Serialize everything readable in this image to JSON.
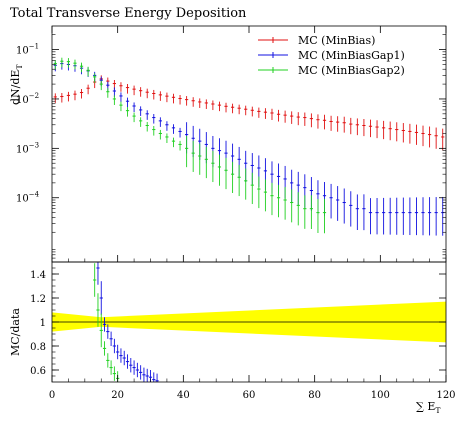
{
  "chart_data": [
    {
      "type": "scatter",
      "title": "Total Transverse Energy Deposition",
      "ylabel": "dN/dE_T",
      "ylabel_parts": {
        "base": "dN/dE",
        "sub": "T"
      },
      "yscale": "log",
      "xlim": [
        0,
        120
      ],
      "ylim": [
        5e-06,
        0.3
      ],
      "yticks": [
        0.1,
        0.01,
        0.001,
        0.0001
      ],
      "ytick_labels": [
        {
          "base": "10",
          "exp": "−1"
        },
        {
          "base": "10",
          "exp": "−2"
        },
        {
          "base": "10",
          "exp": "−3"
        },
        {
          "base": "10",
          "exp": "−4"
        }
      ],
      "legend_position": "top-right",
      "series": [
        {
          "name": "MC (MinBias)",
          "color": "#e01010",
          "points": [
            [
              1,
              0.011
            ],
            [
              3,
              0.0112
            ],
            [
              5,
              0.0118
            ],
            [
              7,
              0.0125
            ],
            [
              9,
              0.0135
            ],
            [
              11,
              0.0165
            ],
            [
              13,
              0.022
            ],
            [
              15,
              0.0255
            ],
            [
              17,
              0.023
            ],
            [
              19,
              0.0205
            ],
            [
              21,
              0.0185
            ],
            [
              23,
              0.017
            ],
            [
              25,
              0.0158
            ],
            [
              27,
              0.0147
            ],
            [
              29,
              0.0137
            ],
            [
              31,
              0.0129
            ],
            [
              33,
              0.0121
            ],
            [
              35,
              0.0114
            ],
            [
              37,
              0.0108
            ],
            [
              39,
              0.0102
            ],
            [
              41,
              0.0097
            ],
            [
              43,
              0.0092
            ],
            [
              45,
              0.0087
            ],
            [
              47,
              0.0083
            ],
            [
              49,
              0.0079
            ],
            [
              51,
              0.0075
            ],
            [
              53,
              0.0071
            ],
            [
              55,
              0.0068
            ],
            [
              57,
              0.0065
            ],
            [
              59,
              0.0062
            ],
            [
              61,
              0.0059
            ],
            [
              63,
              0.0056
            ],
            [
              65,
              0.0054
            ],
            [
              67,
              0.0052
            ],
            [
              69,
              0.0049
            ],
            [
              71,
              0.0047
            ],
            [
              73,
              0.0045
            ],
            [
              75,
              0.0043
            ],
            [
              77,
              0.0042
            ],
            [
              79,
              0.004
            ],
            [
              81,
              0.0038
            ],
            [
              83,
              0.0037
            ],
            [
              85,
              0.0035
            ],
            [
              87,
              0.0034
            ],
            [
              89,
              0.0033
            ],
            [
              91,
              0.0031
            ],
            [
              93,
              0.003
            ],
            [
              95,
              0.0029
            ],
            [
              97,
              0.0028
            ],
            [
              99,
              0.0027
            ],
            [
              101,
              0.0026
            ],
            [
              103,
              0.0025
            ],
            [
              105,
              0.0024
            ],
            [
              107,
              0.0023
            ],
            [
              109,
              0.0022
            ],
            [
              111,
              0.0021
            ],
            [
              113,
              0.002
            ],
            [
              115,
              0.0019
            ],
            [
              117,
              0.0018
            ],
            [
              119,
              0.0017
            ]
          ]
        },
        {
          "name": "MC (MinBiasGap1)",
          "color": "#1010e0",
          "points": [
            [
              1,
              0.048
            ],
            [
              3,
              0.052
            ],
            [
              5,
              0.05
            ],
            [
              7,
              0.047
            ],
            [
              9,
              0.042
            ],
            [
              11,
              0.037
            ],
            [
              13,
              0.03
            ],
            [
              15,
              0.024
            ],
            [
              17,
              0.019
            ],
            [
              19,
              0.0145
            ],
            [
              21,
              0.0115
            ],
            [
              23,
              0.009
            ],
            [
              25,
              0.0072
            ],
            [
              27,
              0.006
            ],
            [
              29,
              0.005
            ],
            [
              31,
              0.0042
            ],
            [
              33,
              0.0036
            ],
            [
              35,
              0.003
            ],
            [
              37,
              0.0026
            ],
            [
              39,
              0.0022
            ],
            [
              41,
              0.0019
            ],
            [
              43,
              0.0016
            ],
            [
              45,
              0.0014
            ],
            [
              47,
              0.0012
            ],
            [
              49,
              0.001
            ],
            [
              51,
              0.0009
            ],
            [
              53,
              0.0008
            ],
            [
              55,
              0.0007
            ],
            [
              57,
              0.0006
            ],
            [
              59,
              0.0005
            ],
            [
              61,
              0.00045
            ],
            [
              63,
              0.0004
            ],
            [
              65,
              0.00035
            ],
            [
              67,
              0.0003
            ],
            [
              69,
              0.00027
            ],
            [
              71,
              0.00024
            ],
            [
              73,
              0.0002
            ],
            [
              75,
              0.00018
            ],
            [
              77,
              0.00016
            ],
            [
              79,
              0.00014
            ],
            [
              81,
              0.00012
            ],
            [
              83,
              0.00011
            ],
            [
              85,
              0.0001
            ],
            [
              87,
              9e-05
            ],
            [
              89,
              8e-05
            ],
            [
              91,
              7e-05
            ],
            [
              93,
              6e-05
            ],
            [
              95,
              6e-05
            ],
            [
              97,
              5e-05
            ],
            [
              99,
              5e-05
            ],
            [
              101,
              5e-05
            ],
            [
              103,
              5e-05
            ],
            [
              105,
              5e-05
            ],
            [
              107,
              5e-05
            ],
            [
              109,
              5e-05
            ],
            [
              111,
              5e-05
            ],
            [
              113,
              5e-05
            ],
            [
              115,
              5e-05
            ],
            [
              117,
              5e-05
            ],
            [
              119,
              5e-05
            ]
          ]
        },
        {
          "name": "MC (MinBiasGap2)",
          "color": "#20d020",
          "points": [
            [
              1,
              0.052
            ],
            [
              3,
              0.058
            ],
            [
              5,
              0.057
            ],
            [
              7,
              0.053
            ],
            [
              9,
              0.046
            ],
            [
              11,
              0.038
            ],
            [
              13,
              0.028
            ],
            [
              15,
              0.02
            ],
            [
              17,
              0.014
            ],
            [
              19,
              0.01
            ],
            [
              21,
              0.0075
            ],
            [
              23,
              0.0058
            ],
            [
              25,
              0.0045
            ],
            [
              27,
              0.0036
            ],
            [
              29,
              0.0029
            ],
            [
              31,
              0.0024
            ],
            [
              33,
              0.002
            ],
            [
              35,
              0.0017
            ],
            [
              37,
              0.0014
            ],
            [
              39,
              0.0012
            ],
            [
              41,
              0.001
            ],
            [
              43,
              0.0008
            ],
            [
              45,
              0.0007
            ],
            [
              47,
              0.0006
            ],
            [
              49,
              0.0005
            ],
            [
              51,
              0.00042
            ],
            [
              53,
              0.00036
            ],
            [
              55,
              0.0003
            ],
            [
              57,
              0.00026
            ],
            [
              59,
              0.00022
            ],
            [
              61,
              0.00018
            ],
            [
              63,
              0.00015
            ],
            [
              65,
              0.00013
            ],
            [
              67,
              0.00011
            ],
            [
              69,
              0.0001
            ],
            [
              71,
              9e-05
            ],
            [
              73,
              8e-05
            ],
            [
              75,
              7e-05
            ],
            [
              77,
              6e-05
            ],
            [
              79,
              6e-05
            ],
            [
              81,
              5e-05
            ],
            [
              83,
              5e-05
            ]
          ]
        }
      ]
    },
    {
      "type": "scatter",
      "ylabel": "MC/data",
      "xlabel": "∑ E_T",
      "xlabel_parts": {
        "base": "∑ E",
        "sub": "T"
      },
      "xlim": [
        0,
        120
      ],
      "ylim": [
        0.5,
        1.5
      ],
      "xticks": [
        0,
        20,
        40,
        60,
        80,
        100,
        120
      ],
      "yticks": [
        0.6,
        0.8,
        1,
        1.2,
        1.4
      ],
      "ytick_labels": [
        "0.6",
        "0.8",
        "1",
        "1.2",
        "1.4"
      ],
      "band": {
        "color": "#ffff00",
        "x": [
          0,
          15,
          120
        ],
        "halfwidth": [
          0.08,
          0.04,
          0.17
        ]
      },
      "series": [
        {
          "name": "MC (MinBiasGap1)",
          "color": "#1010e0",
          "points": [
            [
              14,
              1.45
            ],
            [
              15,
              1.2
            ],
            [
              16,
              0.98
            ],
            [
              17,
              0.92
            ],
            [
              18,
              0.86
            ],
            [
              19,
              0.8
            ],
            [
              20,
              0.75
            ],
            [
              21,
              0.72
            ],
            [
              22,
              0.7
            ],
            [
              23,
              0.67
            ],
            [
              24,
              0.64
            ],
            [
              25,
              0.62
            ],
            [
              26,
              0.6
            ],
            [
              27,
              0.58
            ],
            [
              28,
              0.56
            ],
            [
              29,
              0.55
            ],
            [
              30,
              0.54
            ],
            [
              31,
              0.52
            ],
            [
              32,
              0.51
            ]
          ]
        },
        {
          "name": "MC (MinBiasGap2)",
          "color": "#20d020",
          "points": [
            [
              13,
              1.35
            ],
            [
              14,
              1.1
            ],
            [
              15,
              0.93
            ],
            [
              16,
              0.78
            ],
            [
              17,
              0.68
            ],
            [
              18,
              0.62
            ],
            [
              19,
              0.57
            ],
            [
              20,
              0.53
            ]
          ]
        }
      ]
    }
  ]
}
